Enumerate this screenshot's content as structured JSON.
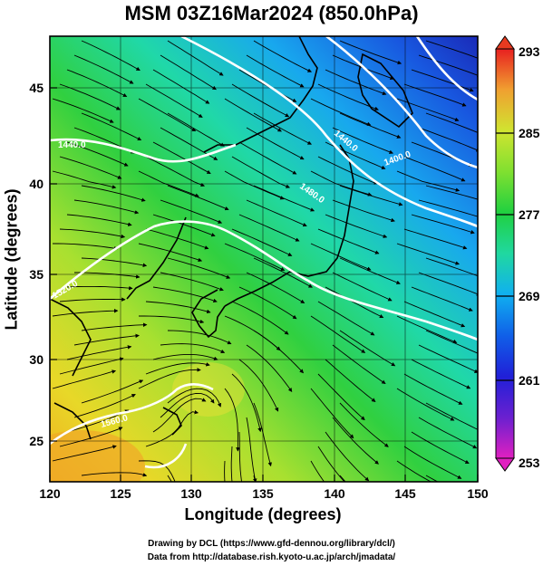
{
  "title": "MSM 03Z16Mar2024 (850.0hPa)",
  "axes": {
    "xlabel": "Longitude (degrees)",
    "ylabel": "Latitude  (degrees)",
    "x_ticks": [
      "120",
      "125",
      "130",
      "135",
      "140",
      "145",
      "150"
    ],
    "y_ticks": [
      "25",
      "30",
      "35",
      "40",
      "45"
    ],
    "x_range": [
      120,
      150
    ],
    "y_range": [
      22.5,
      47.6
    ]
  },
  "colorbar": {
    "ticks": [
      "293",
      "285",
      "277",
      "269",
      "261",
      "253"
    ],
    "range": [
      253,
      293
    ],
    "palette": [
      "#e020c0",
      "#6a20d0",
      "#2020d8",
      "#1060e8",
      "#10a8f0",
      "#20d8b0",
      "#20d050",
      "#60e030",
      "#b8e830",
      "#e8e030",
      "#f0a030",
      "#f05020",
      "#e82020"
    ]
  },
  "contours": {
    "unit": "m",
    "labels": [
      "1440.0",
      "1400.0",
      "1440.0",
      "1480.0",
      "1520.0",
      "1560.0"
    ],
    "color": "#ffffff"
  },
  "credits": {
    "line1": "Drawing by DCL (https://www.gfd-dennou.org/library/dcl/)",
    "line2": "Data from http://database.rish.kyoto-u.ac.jp/arch/jmadata/"
  }
}
